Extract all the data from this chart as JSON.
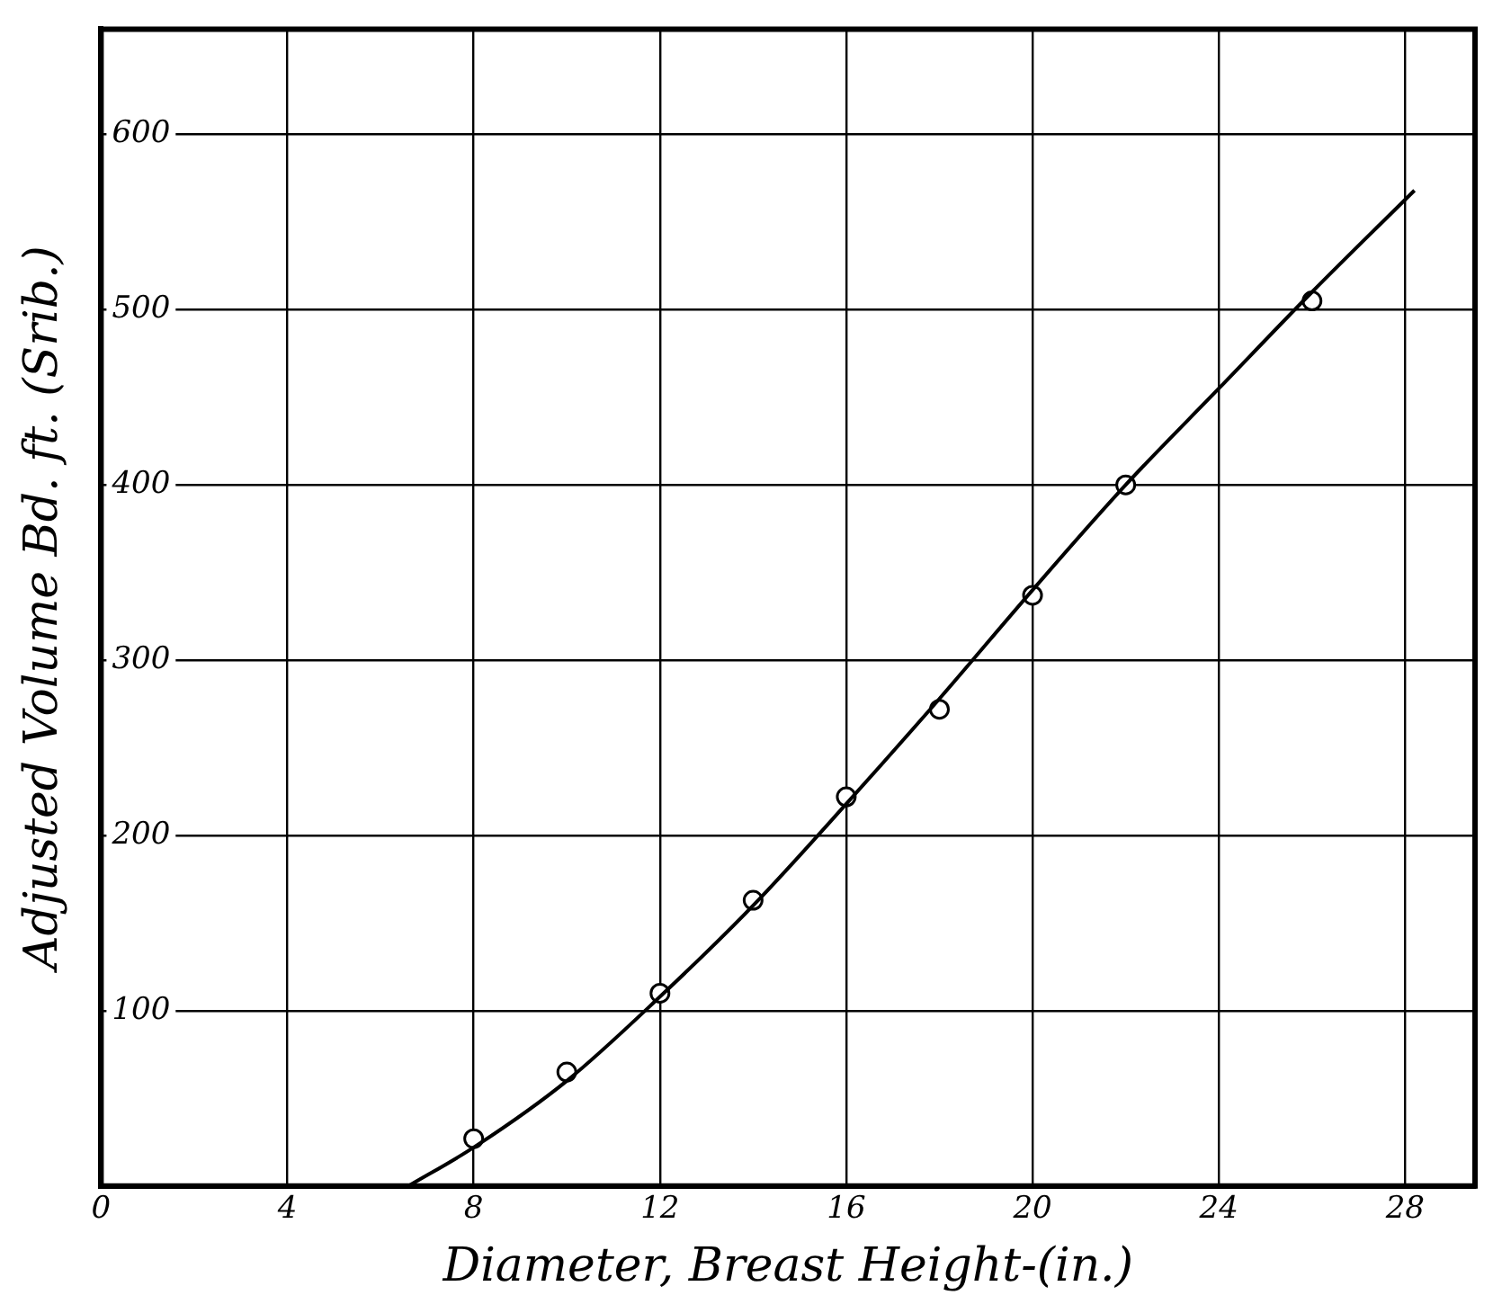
{
  "chart_data": {
    "type": "scatter",
    "xlabel": "Diameter, Breast Height-(in.)",
    "ylabel": "Adjusted Volume Bd. ft. (Srib.)",
    "xlim": [
      0,
      29.5
    ],
    "ylim": [
      0,
      660
    ],
    "xticks": [
      0,
      4,
      8,
      12,
      16,
      20,
      24,
      28
    ],
    "yticks": [
      {
        "value": 0,
        "label": null
      },
      100,
      200,
      300,
      400,
      500,
      600
    ],
    "grid": true,
    "legend": false,
    "marker": "circle",
    "series": [
      {
        "color": "#000000",
        "x": [
          8,
          10,
          12,
          14,
          16,
          18,
          20,
          22,
          26
        ],
        "values": [
          27,
          65,
          110,
          163,
          222,
          272,
          337,
          400,
          505
        ]
      },
      {
        "type": "line",
        "color": "#000000",
        "marker": "none",
        "x": [
          6.6,
          8,
          10,
          12,
          14,
          16,
          18,
          20,
          22,
          24,
          26,
          28.2
        ],
        "values": [
          0,
          22,
          60,
          108,
          160,
          218,
          278,
          340,
          400,
          455,
          510,
          568
        ]
      }
    ]
  }
}
